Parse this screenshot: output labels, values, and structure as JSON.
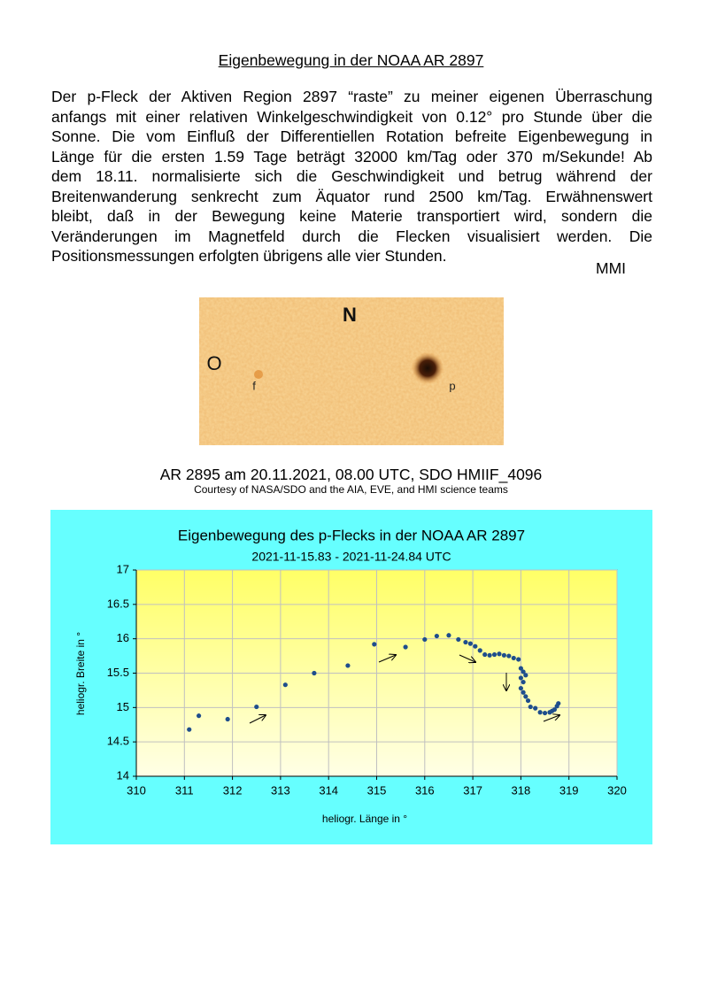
{
  "title": "Eigenbewegung in der NOAA AR 2897",
  "body": [
    "Der p-Fleck der Aktiven Region 2897 “raste” zu meiner eigenen Überraschung",
    "anfangs mit einer relativen Winkelgeschwindigkeit von 0.12° pro Stunde über die",
    "Sonne. Die vom Einfluß der Differentiellen Rotation befreite Eigenbewegung in",
    "Länge für die ersten 1.59 Tage beträgt 32000 km/Tag oder 370 m/Sekunde! Ab",
    "dem 18.11. normalisierte sich die Geschwindigkeit und betrug während der",
    "Breitenwanderung senkrecht zum Äquator rund 2500 km/Tag. Erwähnenswert",
    "bleibt, daß in der Bewegung keine Materie transportiert wird, sondern die",
    "Veränderungen im Magnetfeld durch die Flecken visualisiert werden. Die",
    "Positionsmessungen erfolgten übrigens alle vier Stunden."
  ],
  "author": "MMI",
  "image": {
    "labels": [
      "N",
      "O",
      "f",
      "p"
    ]
  },
  "caption": "AR 2895 am 20.11.2021, 08.00 UTC, SDO HMIIF_4096",
  "credit": "Courtesy of NASA/SDO and the AIA, EVE, and HMI science teams",
  "chart_data": {
    "type": "scatter",
    "title": "Eigenbewegung des p-Flecks in der NOAA  AR 2897",
    "subtitle": "2021-11-15.83 - 2021-11-24.84 UTC",
    "xlabel": "heliogr.  Länge in °",
    "ylabel": "heliogr. Breite in °",
    "color": "#1f4e8c",
    "grid": true,
    "x": [
      311.1,
      311.3,
      311.9,
      312.5,
      313.1,
      313.7,
      314.4,
      314.95,
      315.6,
      316.0,
      316.25,
      316.5,
      316.7,
      316.85,
      316.95,
      317.05,
      317.15,
      317.25,
      317.35,
      317.45,
      317.55,
      317.65,
      317.75,
      317.85,
      317.95,
      318.0,
      318.05,
      318.1,
      318.0,
      318.05,
      318.0,
      318.05,
      318.1,
      318.15,
      318.2,
      318.3,
      318.4,
      318.5,
      318.6,
      318.65,
      318.7,
      318.75,
      318.78
    ],
    "y": [
      14.68,
      14.88,
      14.83,
      15.01,
      15.33,
      15.5,
      15.61,
      15.92,
      15.88,
      15.99,
      16.04,
      16.05,
      15.99,
      15.95,
      15.93,
      15.89,
      15.83,
      15.77,
      15.76,
      15.77,
      15.78,
      15.76,
      15.75,
      15.72,
      15.7,
      15.57,
      15.52,
      15.47,
      15.43,
      15.37,
      15.28,
      15.22,
      15.16,
      15.1,
      15.01,
      14.99,
      14.93,
      14.92,
      14.93,
      14.95,
      14.97,
      15.02,
      15.06
    ],
    "xlim": [
      310,
      320
    ],
    "xticks": [
      310,
      311,
      312,
      313,
      314,
      315,
      316,
      317,
      318,
      319,
      320
    ],
    "ylim": [
      14,
      17
    ],
    "yticks": [
      14,
      14.5,
      15,
      15.5,
      16,
      16.5,
      17
    ]
  }
}
